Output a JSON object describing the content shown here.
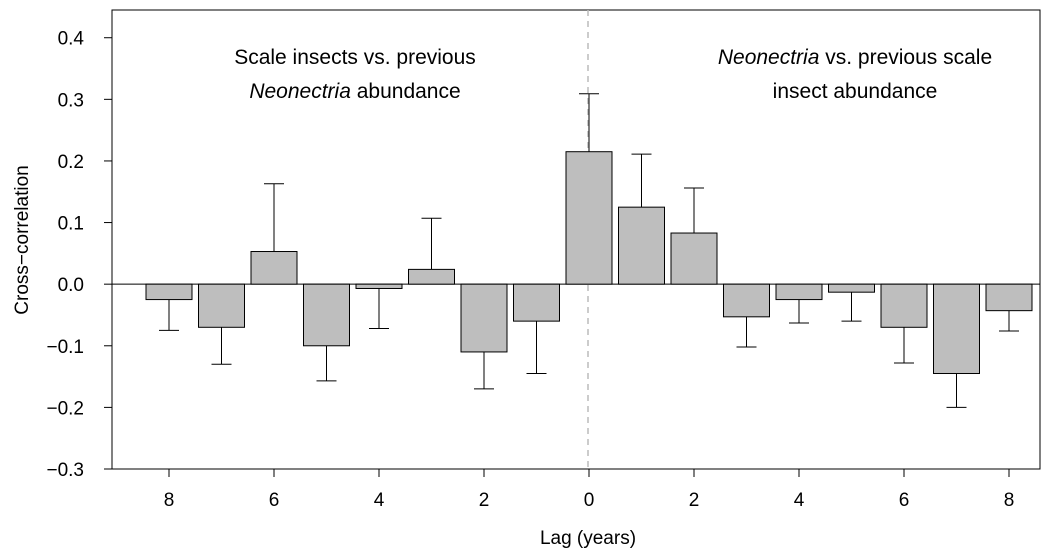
{
  "chart_data": {
    "type": "bar",
    "x_label": "Lag (years)",
    "y_label": "Cross−correlation",
    "categories": [
      "8",
      null,
      "6",
      null,
      "4",
      null,
      "2",
      null,
      "0",
      null,
      "2",
      null,
      "4",
      null,
      "6",
      null,
      "8"
    ],
    "values": [
      -0.025,
      -0.07,
      0.053,
      -0.1,
      -0.007,
      0.024,
      -0.11,
      -0.06,
      0.215,
      0.125,
      0.083,
      -0.053,
      -0.025,
      -0.013,
      -0.07,
      -0.145,
      -0.043
    ],
    "errors": [
      0.05,
      0.06,
      0.11,
      0.057,
      0.065,
      0.083,
      0.06,
      0.085,
      0.094,
      0.086,
      0.073,
      0.049,
      0.038,
      0.047,
      0.058,
      0.055,
      0.033
    ],
    "color": "#bebebe",
    "ylim": [
      -0.3,
      0.445
    ],
    "yticks": [
      {
        "value": -0.3,
        "label": "−0.3"
      },
      {
        "value": -0.2,
        "label": "−0.2"
      },
      {
        "value": -0.1,
        "label": "−0.1"
      },
      {
        "value": 0,
        "label": "0.0"
      },
      {
        "value": 0.1,
        "label": "0.1"
      },
      {
        "value": 0.2,
        "label": "0.2"
      },
      {
        "value": 0.3,
        "label": "0.3"
      },
      {
        "value": 0.4,
        "label": "0.4"
      }
    ],
    "annotations": [
      {
        "lines": [
          [
            {
              "text": "Scale insects vs. previous"
            }
          ],
          [
            {
              "text": "Neonectria",
              "italic": true
            },
            {
              "text": " abundance"
            }
          ]
        ]
      },
      {
        "lines": [
          [
            {
              "text": "Neonectria",
              "italic": true
            },
            {
              "text": " vs. previous scale"
            }
          ],
          [
            {
              "text": "insect abundance"
            }
          ]
        ]
      }
    ]
  }
}
